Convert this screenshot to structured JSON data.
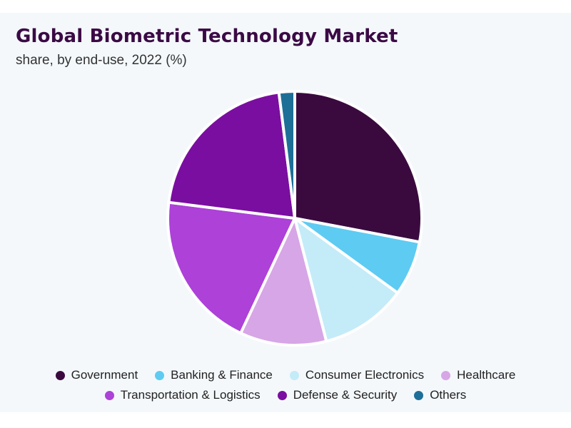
{
  "chart_data": {
    "type": "pie",
    "title": "Global Biometric Technology Market",
    "subtitle": "share, by end-use, 2022 (%)",
    "categories": [
      "Government",
      "Banking & Finance",
      "Consumer Electronics",
      "Healthcare",
      "Transportation & Logistics",
      "Defense & Security",
      "Others"
    ],
    "values": [
      28,
      7,
      11,
      11,
      20,
      21,
      2
    ],
    "colors": [
      "#3a0a3f",
      "#5ecbf2",
      "#c4ebf8",
      "#d7a6e6",
      "#ad41d8",
      "#7a0ea0",
      "#1e6f97"
    ],
    "legend": "bottom",
    "legend_rows": [
      [
        0,
        1,
        2,
        3
      ],
      [
        4,
        5,
        6
      ]
    ]
  }
}
